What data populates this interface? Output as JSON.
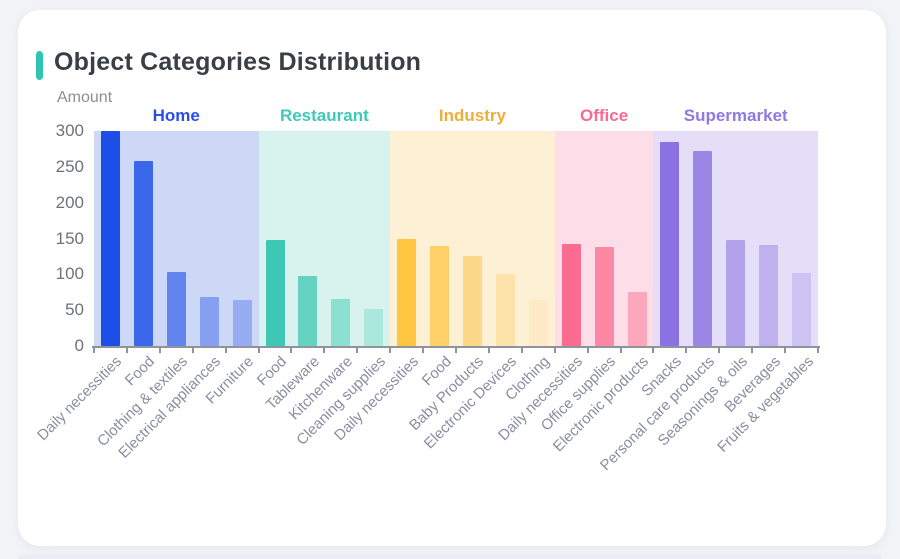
{
  "page": {
    "title": "Object Categories Distribution"
  },
  "accent_color": "#2fc5b1",
  "chart_data": {
    "type": "bar",
    "title": "Object Categories Distribution",
    "xlabel": "",
    "ylabel": "Amount",
    "ylim": [
      0,
      300
    ],
    "y_ticks": [
      0,
      50,
      100,
      150,
      200,
      250,
      300
    ],
    "grid": false,
    "legend_position": "none",
    "axis_line_color": "#8f949c",
    "groups": [
      {
        "name": "Home",
        "header_color": "#2b4eea",
        "panel_color": "#cdd8f6",
        "bar_colors": [
          "#1b4fe8",
          "#3b67ea",
          "#6184ee",
          "#86a0f1",
          "#97adf3"
        ],
        "categories": [
          "Daily necessities",
          "Food",
          "Clothing & textiles",
          "Electrical appliances",
          "Furniture"
        ],
        "values": [
          300,
          258,
          103,
          69,
          64
        ]
      },
      {
        "name": "Restaurant",
        "header_color": "#41c8b6",
        "panel_color": "#d8f3ee",
        "bar_colors": [
          "#3ec8b4",
          "#65d2c2",
          "#8ddfd2",
          "#aae7dd"
        ],
        "categories": [
          "Food",
          "Tableware",
          "Kitchenware",
          "Cleaning supplies"
        ],
        "values": [
          148,
          97,
          65,
          51
        ]
      },
      {
        "name": "Industry",
        "header_color": "#efae3c",
        "panel_color": "#fdf0d5",
        "bar_colors": [
          "#ffc440",
          "#fed067",
          "#fdd888",
          "#fde3aa",
          "#feeac4"
        ],
        "categories": [
          "Daily necessities",
          "Food",
          "Baby Products",
          "Electronic Devices",
          "Clothing"
        ],
        "values": [
          150,
          139,
          126,
          100,
          64
        ]
      },
      {
        "name": "Office",
        "header_color": "#fa6a93",
        "panel_color": "#fcdde8",
        "bar_colors": [
          "#fc6b90",
          "#fd88a4",
          "#fca7bc"
        ],
        "categories": [
          "Daily necessities",
          "Office supplies",
          "Electronic products"
        ],
        "values": [
          143,
          138,
          75
        ]
      },
      {
        "name": "Supermarket",
        "header_color": "#8d7ae5",
        "panel_color": "#e4def8",
        "bar_colors": [
          "#8b72e2",
          "#9d87e6",
          "#b2a2ea",
          "#bfb1ee",
          "#cdc3f2"
        ],
        "categories": [
          "Snacks",
          "Personal care products",
          "Seasonings & oils",
          "Beverages",
          "Fruits & vegetables"
        ],
        "values": [
          285,
          272,
          148,
          141,
          102
        ]
      }
    ]
  }
}
